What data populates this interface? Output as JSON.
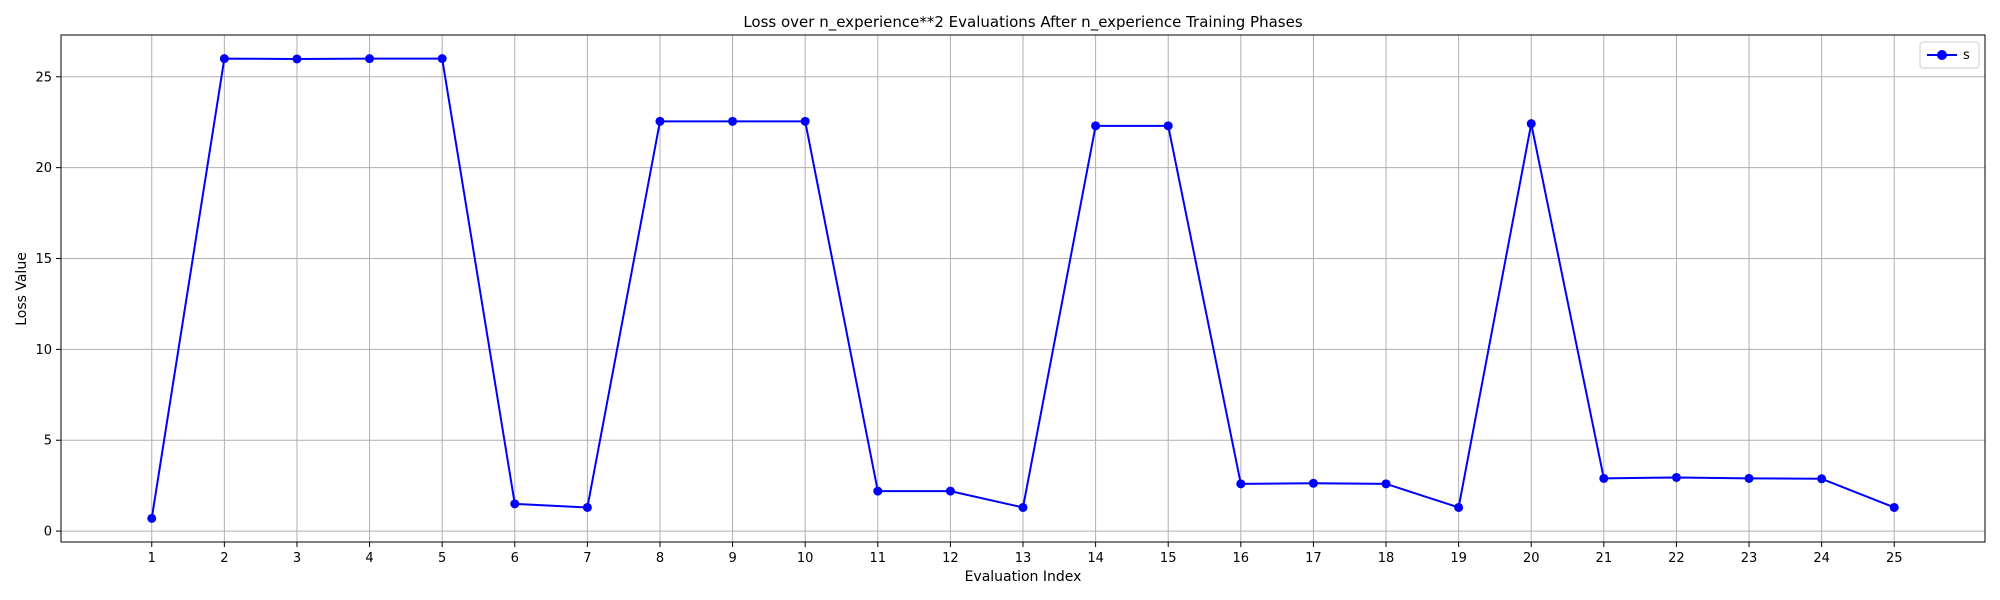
{
  "chart_data": {
    "type": "line",
    "title": "Loss over n_experience**2 Evaluations After n_experience Training Phases",
    "xlabel": "Evaluation Index",
    "ylabel": "Loss Value",
    "x": [
      1,
      2,
      3,
      4,
      5,
      6,
      7,
      8,
      9,
      10,
      11,
      12,
      13,
      14,
      15,
      16,
      17,
      18,
      19,
      20,
      21,
      22,
      23,
      24,
      25
    ],
    "series": [
      {
        "name": "s",
        "color": "#0000ff",
        "marker": "circle",
        "values": [
          0.7,
          26.0,
          25.98,
          26.0,
          26.0,
          1.5,
          1.3,
          22.55,
          22.55,
          22.55,
          2.2,
          2.2,
          1.3,
          22.3,
          22.3,
          2.6,
          2.63,
          2.6,
          1.3,
          22.42,
          2.9,
          2.95,
          2.9,
          2.88,
          1.3
        ]
      }
    ],
    "xlim": [
      -0.25,
      26.25
    ],
    "ylim": [
      -0.6,
      27.3
    ],
    "yticks": [
      0,
      5,
      10,
      15,
      20,
      25
    ],
    "grid": true,
    "legend_position": "top-right"
  }
}
